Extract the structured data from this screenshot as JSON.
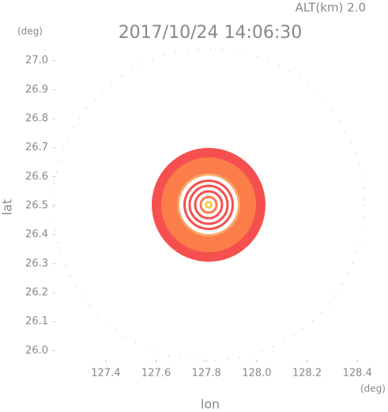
{
  "chart_data": {
    "type": "radar-map",
    "title": "2017/10/24 14:06:30",
    "annotation": "ALT(km) 2.0",
    "xlabel": "lon",
    "ylabel": "lat",
    "xunit": "(deg)",
    "yunit": "(deg)",
    "xlim": [
      127.19,
      128.44
    ],
    "ylim": [
      25.96,
      27.04
    ],
    "xticks": [
      {
        "value": 127.4,
        "label": "127.4"
      },
      {
        "value": 127.6,
        "label": "127.6"
      },
      {
        "value": 127.8,
        "label": "127.8"
      },
      {
        "value": 128.0,
        "label": "128.0"
      },
      {
        "value": 128.2,
        "label": "128.2"
      },
      {
        "value": 128.4,
        "label": "128.4"
      }
    ],
    "yticks": [
      {
        "value": 26.0,
        "label": "26.0"
      },
      {
        "value": 26.1,
        "label": "26.1"
      },
      {
        "value": 26.2,
        "label": "26.2"
      },
      {
        "value": 26.3,
        "label": "26.3"
      },
      {
        "value": 26.4,
        "label": "26.4"
      },
      {
        "value": 26.5,
        "label": "26.5"
      },
      {
        "value": 26.6,
        "label": "26.6"
      },
      {
        "value": 26.7,
        "label": "26.7"
      },
      {
        "value": 26.8,
        "label": "26.8"
      },
      {
        "value": 26.9,
        "label": "26.9"
      },
      {
        "value": 27.0,
        "label": "27.0"
      }
    ]
  }
}
